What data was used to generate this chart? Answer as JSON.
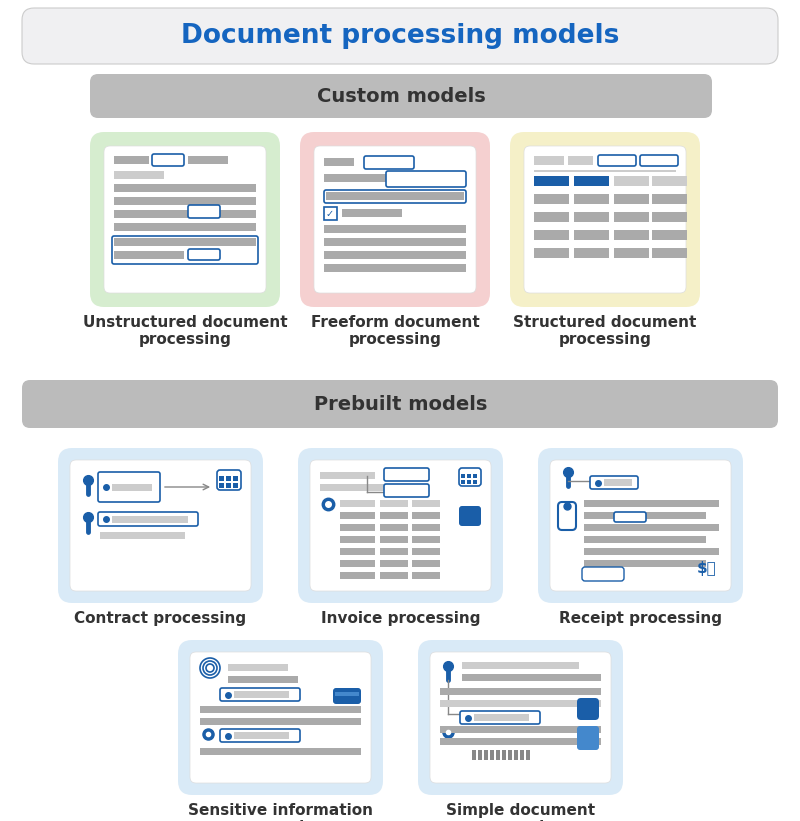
{
  "title": "Document processing models",
  "title_color": "#1565C0",
  "section_custom": "Custom models",
  "section_prebuilt": "Prebuilt models",
  "custom_models": [
    {
      "label": "Unstructured document\nprocessing",
      "bg": "#D6EDCF"
    },
    {
      "label": "Freeform document\nprocessing",
      "bg": "#F5D0D0"
    },
    {
      "label": "Structured document\nprocessing",
      "bg": "#F5F0C8"
    }
  ],
  "prebuilt_row1": [
    {
      "label": "Contract processing",
      "bg": "#D9EAF7"
    },
    {
      "label": "Invoice processing",
      "bg": "#D9EAF7"
    },
    {
      "label": "Receipt processing",
      "bg": "#D9EAF7"
    }
  ],
  "prebuilt_row2": [
    {
      "label": "Sensitive information\nprocessing",
      "bg": "#D9EAF7"
    },
    {
      "label": "Simple document\nprocessing",
      "bg": "#D9EAF7"
    }
  ],
  "bg_color": "#FFFFFF",
  "text_color": "#333333",
  "blue": "#1A5EA8",
  "gray": "#AAAAAA",
  "lgray": "#CCCCCC",
  "dgray": "#888888"
}
